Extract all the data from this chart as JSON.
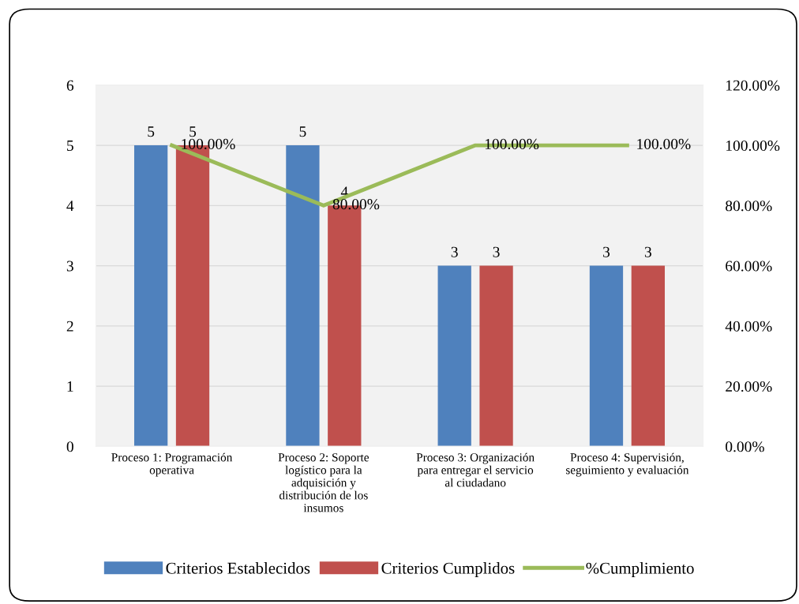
{
  "chart_data": {
    "type": "bar",
    "categories": [
      "Proceso 1: Programación\noperativa",
      "Proceso 2: Soporte\nlogístico para la\nadquisición y\ndistribución de los\ninsumos",
      "Proceso 3: Organización\npara entregar el servicio\nal ciudadano",
      "Proceso 4: Supervisión,\nseguimiento y evaluación"
    ],
    "series": [
      {
        "name": "Criterios Establecidos",
        "color": "#4f81bd",
        "values": [
          5,
          5,
          3,
          3
        ],
        "value_labels": [
          "5",
          "5",
          "3",
          "3"
        ]
      },
      {
        "name": "Criterios Cumplidos",
        "color": "#c0504d",
        "values": [
          5,
          4,
          3,
          3
        ],
        "value_labels": [
          "5",
          "4",
          "3",
          "3"
        ]
      },
      {
        "name": "%Cumplimiento",
        "type": "line",
        "axis": "y2",
        "color": "#9bbb59",
        "values": [
          100,
          80,
          100,
          100
        ],
        "value_labels": [
          "100.00%",
          "80.00%",
          "100.00%",
          "100.00%"
        ]
      }
    ],
    "ylim": [
      0,
      6
    ],
    "yticks": [
      0,
      1,
      2,
      3,
      4,
      5,
      6
    ],
    "y2lim": [
      0,
      120
    ],
    "y2ticks": [
      {
        "value": 0,
        "label": "0.00%"
      },
      {
        "value": 20,
        "label": "20.00%"
      },
      {
        "value": 40,
        "label": "40.00%"
      },
      {
        "value": 60,
        "label": "60.00%"
      },
      {
        "value": 80,
        "label": "80.00%"
      },
      {
        "value": 100,
        "label": "100.00%"
      },
      {
        "value": 120,
        "label": "120.00%"
      }
    ],
    "grid": "y",
    "legend": "bottom",
    "marker": "none",
    "line_style": "solid"
  }
}
